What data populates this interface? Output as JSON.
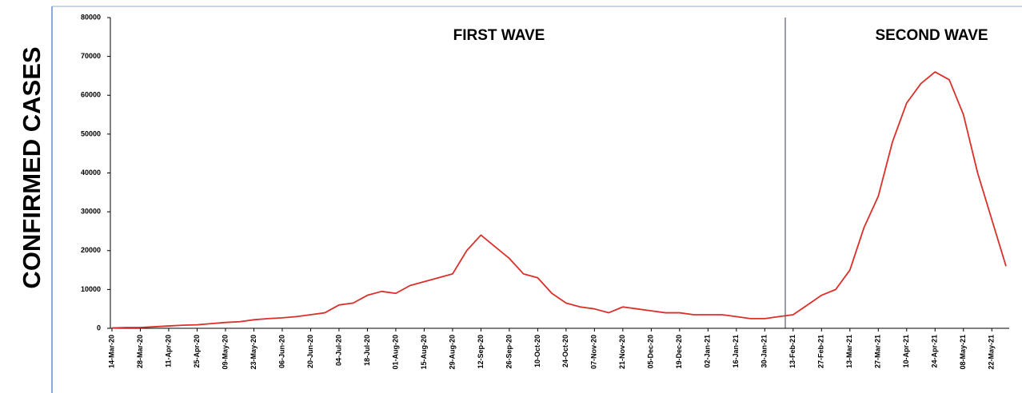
{
  "chart_data": {
    "type": "line",
    "y_label": "CONFIRMED CASES",
    "annotations": [
      "FIRST WAVE",
      "SECOND WAVE"
    ],
    "x": [
      "14-Mar-20",
      "21-Mar-20",
      "28-Mar-20",
      "04-Apr-20",
      "11-Apr-20",
      "18-Apr-20",
      "25-Apr-20",
      "02-May-20",
      "09-May-20",
      "16-May-20",
      "23-May-20",
      "30-May-20",
      "06-Jun-20",
      "13-Jun-20",
      "20-Jun-20",
      "27-Jun-20",
      "04-Jul-20",
      "11-Jul-20",
      "18-Jul-20",
      "25-Jul-20",
      "01-Aug-20",
      "08-Aug-20",
      "15-Aug-20",
      "22-Aug-20",
      "29-Aug-20",
      "05-Sep-20",
      "12-Sep-20",
      "19-Sep-20",
      "26-Sep-20",
      "03-Oct-20",
      "10-Oct-20",
      "17-Oct-20",
      "24-Oct-20",
      "31-Oct-20",
      "07-Nov-20",
      "14-Nov-20",
      "21-Nov-20",
      "28-Nov-20",
      "05-Dec-20",
      "12-Dec-20",
      "19-Dec-20",
      "26-Dec-20",
      "02-Jan-21",
      "09-Jan-21",
      "16-Jan-21",
      "23-Jan-21",
      "30-Jan-21",
      "06-Feb-21",
      "13-Feb-21",
      "20-Feb-21",
      "27-Feb-21",
      "06-Mar-21",
      "13-Mar-21",
      "20-Mar-21",
      "27-Mar-21",
      "03-Apr-21",
      "10-Apr-21",
      "17-Apr-21",
      "24-Apr-21",
      "01-May-21",
      "08-May-21",
      "15-May-21",
      "22-May-21",
      "29-May-21"
    ],
    "series": [
      {
        "name": "Confirmed cases",
        "color": "#d9302a",
        "values": [
          100,
          200,
          200,
          400,
          600,
          800,
          900,
          1200,
          1500,
          1700,
          2200,
          2500,
          2700,
          3000,
          3500,
          4000,
          6000,
          6500,
          8500,
          9500,
          9000,
          11000,
          12000,
          13000,
          14000,
          20000,
          24000,
          21000,
          18000,
          14000,
          13000,
          9000,
          6500,
          5500,
          5000,
          4000,
          5500,
          5000,
          4500,
          4000,
          4000,
          3500,
          3500,
          3500,
          3000,
          2500,
          2500,
          3000,
          3500,
          6000,
          8500,
          10000,
          15000,
          26000,
          34000,
          48000,
          58000,
          63000,
          66000,
          64000,
          55000,
          40000,
          28000,
          16000
        ]
      }
    ],
    "xticks": [
      "14-Mar-20",
      "28-Mar-20",
      "11-Apr-20",
      "25-Apr-20",
      "09-May-20",
      "23-May-20",
      "06-Jun-20",
      "20-Jun-20",
      "04-Jul-20",
      "18-Jul-20",
      "01-Aug-20",
      "15-Aug-20",
      "29-Aug-20",
      "12-Sep-20",
      "26-Sep-20",
      "10-Oct-20",
      "24-Oct-20",
      "07-Nov-20",
      "21-Nov-20",
      "05-Dec-20",
      "19-Dec-20",
      "02-Jan-21",
      "16-Jan-21",
      "30-Jan-21",
      "13-Feb-21",
      "27-Feb-21",
      "13-Mar-21",
      "27-Mar-21",
      "10-Apr-21",
      "24-Apr-21",
      "08-May-21",
      "22-May-21"
    ],
    "ylim": [
      0,
      80000
    ],
    "yticks": [
      0,
      10000,
      20000,
      30000,
      40000,
      50000,
      60000,
      70000,
      80000
    ]
  }
}
